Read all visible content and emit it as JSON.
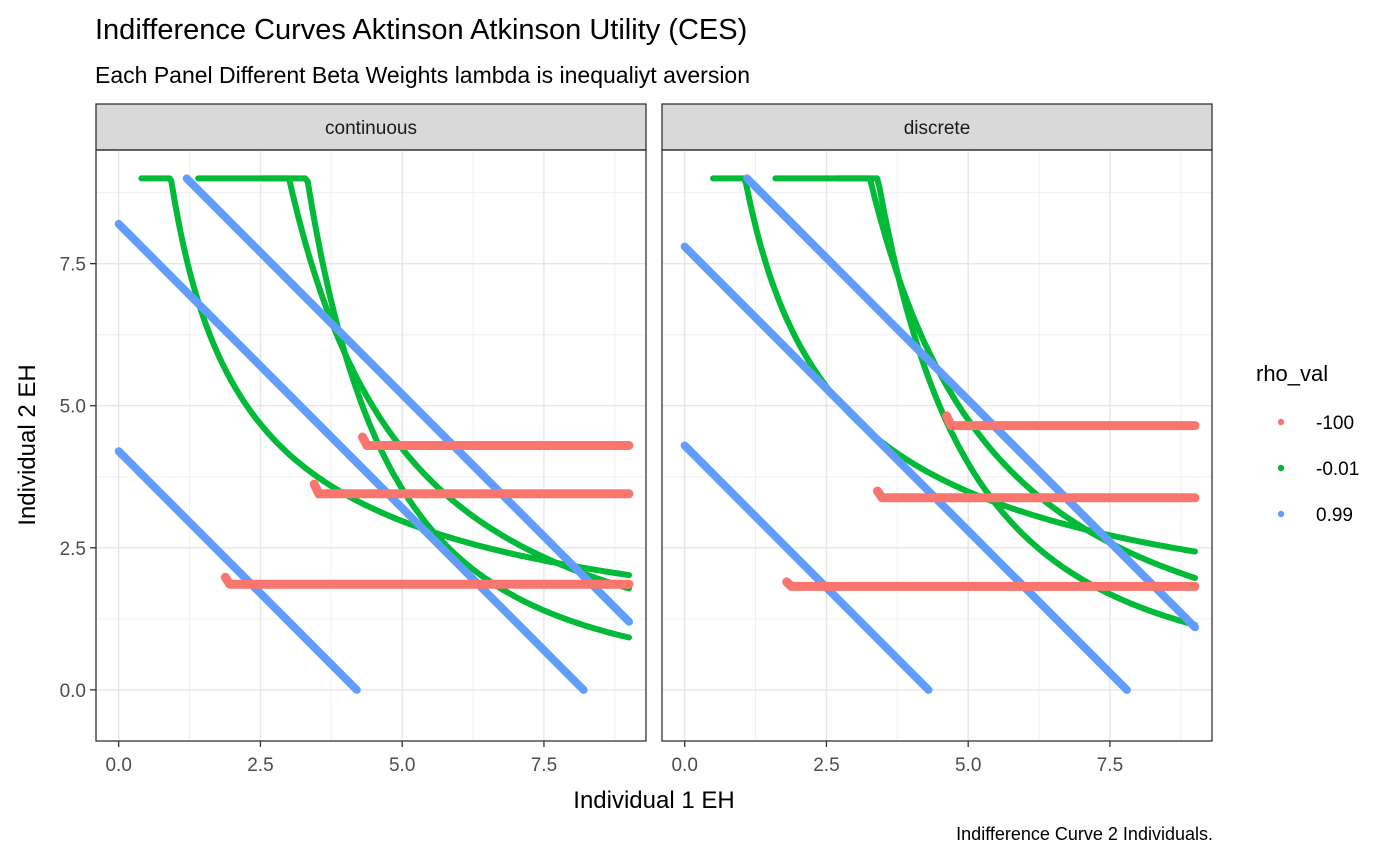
{
  "chart_data": {
    "type": "scatter",
    "title": "Indifference Curves Aktinson Atkinson Utility (CES)",
    "subtitle": "Each Panel Different Beta Weights lambda is inequaliyt aversion",
    "caption": "Indifference Curve 2 Individuals.",
    "xlabel": "Individual 1 EH",
    "ylabel": "Individual 2 EH",
    "xlim": [
      -0.4,
      9.3
    ],
    "ylim": [
      -0.9,
      9.5
    ],
    "x_ticks": [
      0.0,
      2.5,
      5.0,
      7.5
    ],
    "x_tick_labels": [
      "0.0",
      "2.5",
      "5.0",
      "7.5"
    ],
    "y_ticks": [
      0.0,
      2.5,
      5.0,
      7.5
    ],
    "y_tick_labels": [
      "0.0",
      "2.5",
      "5.0",
      "7.5"
    ],
    "grid": true,
    "legend": {
      "title": "rho_val",
      "position": "right",
      "entries": [
        {
          "label": "-100",
          "color": "#F8766D"
        },
        {
          "label": "-0.01",
          "color": "#00BA38"
        },
        {
          "label": "0.99",
          "color": "#619CFF"
        }
      ]
    },
    "panels": [
      {
        "name": "continuous",
        "series": [
          {
            "rho": "-100",
            "segments": [
              {
                "kind": "leontief",
                "start": [
                  1.88,
                  1.98
                ],
                "level": 1.86,
                "x_end": 9.0
              },
              {
                "kind": "leontief",
                "start": [
                  3.45,
                  3.62
                ],
                "level": 3.45,
                "x_end": 9.0
              },
              {
                "kind": "leontief",
                "start": [
                  4.3,
                  4.45
                ],
                "level": 4.3,
                "x_end": 9.0
              }
            ]
          },
          {
            "rho": "-0.01",
            "segments": [
              {
                "kind": "cobb",
                "c": 3.65,
                "a": 0.396,
                "b": 0.604,
                "x_start": 0.4,
                "x_end": 9.0
              },
              {
                "kind": "cobb",
                "c": 4.5,
                "a": 0.696,
                "b": 0.304,
                "x_start": 1.4,
                "x_end": 9.0
              },
              {
                "kind": "cobb",
                "c": 4.68,
                "a": 0.596,
                "b": 0.404,
                "x_start": 2.53,
                "x_end": 9.0
              }
            ]
          },
          {
            "rho": "0.99",
            "segments": [
              {
                "kind": "linear",
                "from": [
                  0.0,
                  4.2
                ],
                "to": [
                  4.2,
                  0.0
                ]
              },
              {
                "kind": "linear",
                "from": [
                  0.0,
                  8.2
                ],
                "to": [
                  8.2,
                  0.0
                ]
              },
              {
                "kind": "linear",
                "from": [
                  1.2,
                  9.0
                ],
                "to": [
                  9.0,
                  1.2
                ]
              }
            ]
          }
        ]
      },
      {
        "name": "discrete",
        "series": [
          {
            "rho": "-100",
            "segments": [
              {
                "kind": "leontief",
                "start": [
                  1.8,
                  1.9
                ],
                "level": 1.82,
                "x_end": 9.0
              },
              {
                "kind": "leontief",
                "start": [
                  3.4,
                  3.5
                ],
                "level": 3.38,
                "x_end": 9.0
              },
              {
                "kind": "leontief",
                "start": [
                  4.62,
                  4.82
                ],
                "level": 4.65,
                "x_end": 9.0
              }
            ]
          },
          {
            "rho": "-0.01",
            "segments": [
              {
                "kind": "cobb",
                "c": 4.0,
                "a": 0.38,
                "b": 0.62,
                "x_start": 0.5,
                "x_end": 9.0
              },
              {
                "kind": "cobb",
                "c": 4.65,
                "a": 0.68,
                "b": 0.32,
                "x_start": 1.6,
                "x_end": 9.0
              },
              {
                "kind": "cobb",
                "c": 4.9,
                "a": 0.6,
                "b": 0.4,
                "x_start": 2.68,
                "x_end": 9.0
              }
            ]
          },
          {
            "rho": "0.99",
            "segments": [
              {
                "kind": "linear",
                "from": [
                  0.0,
                  4.3
                ],
                "to": [
                  4.3,
                  0.0
                ]
              },
              {
                "kind": "linear",
                "from": [
                  0.0,
                  7.8
                ],
                "to": [
                  7.8,
                  0.0
                ]
              },
              {
                "kind": "linear",
                "from": [
                  1.1,
                  9.0
                ],
                "to": [
                  9.0,
                  1.1
                ]
              }
            ]
          }
        ]
      }
    ]
  }
}
